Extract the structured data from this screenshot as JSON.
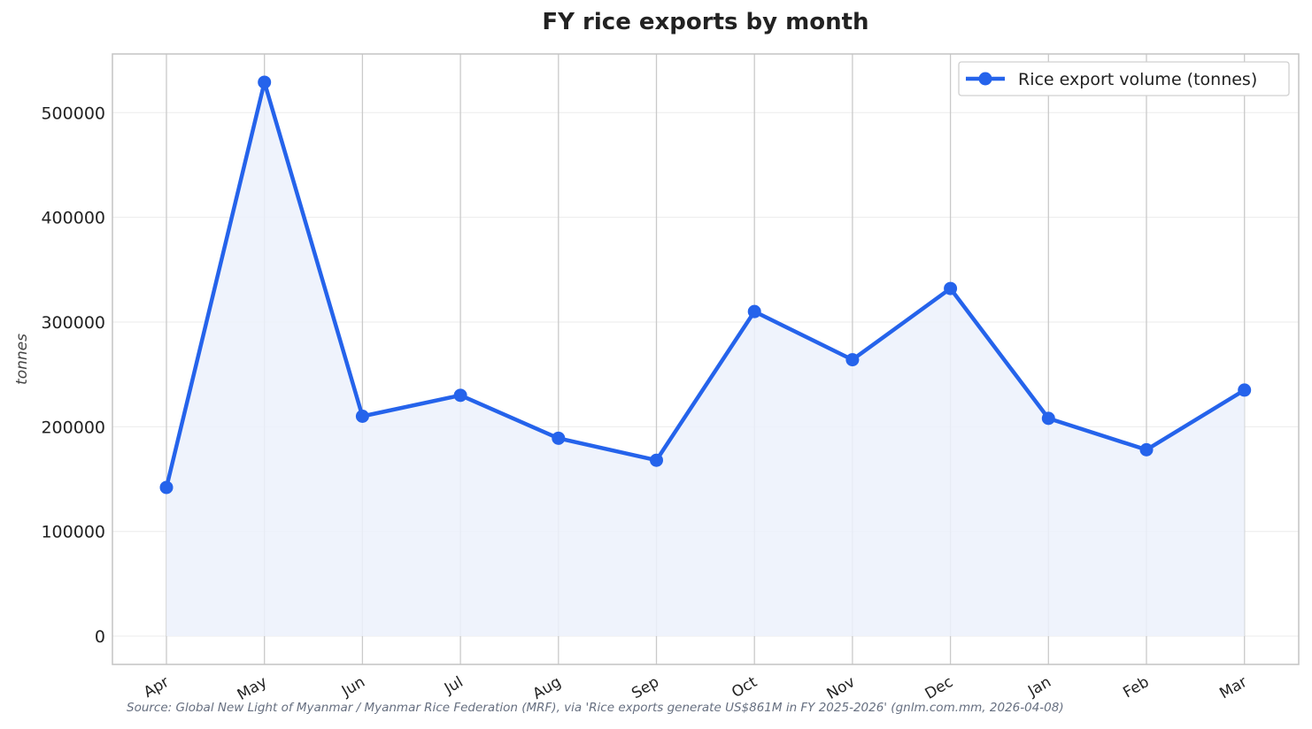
{
  "chart_data": {
    "type": "line",
    "title": "FY rice exports by month",
    "xlabel": "",
    "ylabel": "tonnes",
    "categories": [
      "Apr",
      "May",
      "Jun",
      "Jul",
      "Aug",
      "Sep",
      "Oct",
      "Nov",
      "Dec",
      "Jan",
      "Feb",
      "Mar"
    ],
    "series": [
      {
        "name": "Rice export volume (tonnes)",
        "values": [
          142000,
          529000,
          210000,
          230000,
          189000,
          168000,
          310000,
          264000,
          332000,
          208000,
          178000,
          235000
        ],
        "color": "#2563eb"
      }
    ],
    "yticks": [
      0,
      100000,
      200000,
      300000,
      400000,
      500000
    ],
    "ylim": [
      -27000,
      556000
    ],
    "grid": true,
    "legend_position": "top-right",
    "fill_color": "#ecf1fc"
  },
  "source_note": "Source: Global New Light of Myanmar / Myanmar Rice Federation (MRF), via 'Rice exports generate US$861M in FY 2025-2026' (gnlm.com.mm, 2026-04-08)"
}
